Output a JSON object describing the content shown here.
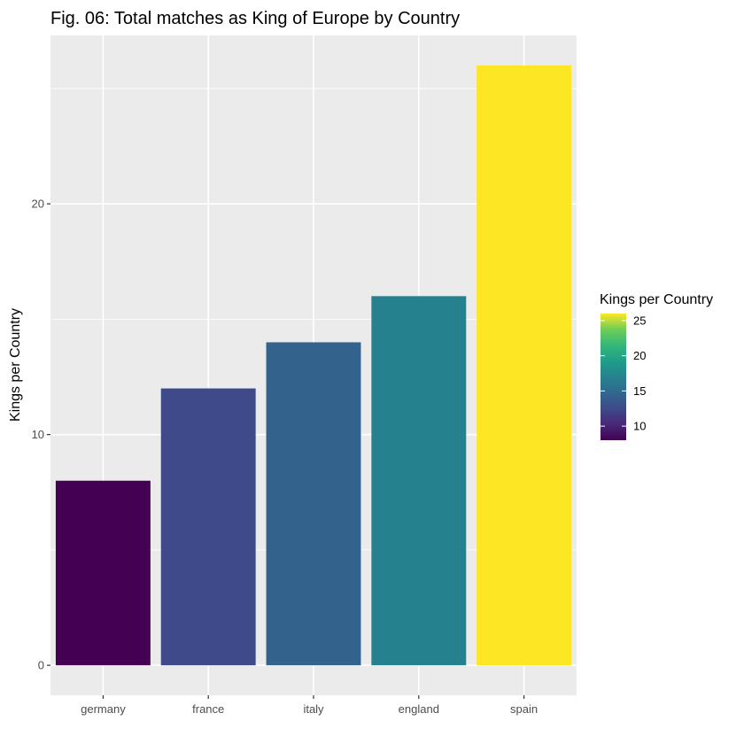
{
  "chart_data": {
    "type": "bar",
    "title": "Fig. 06: Total matches as King of Europe by Country",
    "xlabel": "",
    "ylabel": "Kings per Country",
    "categories": [
      "germany",
      "france",
      "italy",
      "england",
      "spain"
    ],
    "values": [
      8,
      12,
      14,
      16,
      26
    ],
    "ylim": [
      -1.3,
      27.3
    ],
    "yticks": [
      0,
      10,
      20
    ],
    "yticks_labels": [
      "0",
      "10",
      "20"
    ],
    "grid": true,
    "panel_background": "#ebebeb",
    "grid_color": "#ffffff",
    "fill_scale": "viridis",
    "legend": {
      "title": "Kings per Country",
      "placement": "right",
      "range": [
        8,
        26
      ],
      "ticks": [
        10,
        15,
        20,
        25
      ],
      "tick_labels": [
        "10",
        "15",
        "20",
        "25"
      ]
    },
    "colors": {
      "germany": "#440154",
      "france": "#3f4a8a",
      "italy": "#33638d",
      "england": "#26818e",
      "spain": "#fde725"
    }
  }
}
